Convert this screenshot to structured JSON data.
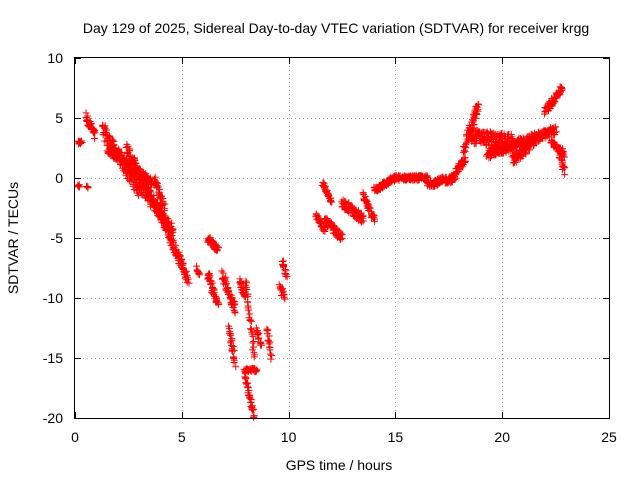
{
  "chart_data": {
    "type": "scatter",
    "title": "Day 129 of 2025, Sidereal Day-to-day VTEC variation (SDTVAR) for receiver krgg",
    "xlabel": "GPS time / hours",
    "ylabel": "SDTVAR / TECUs",
    "xlim": [
      0,
      25
    ],
    "ylim": [
      -20,
      10
    ],
    "xticks": [
      "0",
      "5",
      "10",
      "15",
      "20",
      "25"
    ],
    "yticks": [
      "10",
      "5",
      "0",
      "-5",
      "-10",
      "-15",
      "-20"
    ],
    "grid": true,
    "marker": "+",
    "color": "#ff0000",
    "series": [
      {
        "name": "SDTVAR",
        "segments": [
          {
            "x0": 0.15,
            "x1": 0.3,
            "y0": 2.9,
            "y1": 3.0,
            "spread": 0.3
          },
          {
            "x0": 0.15,
            "x1": 0.2,
            "y0": -0.6,
            "y1": -0.7,
            "spread": 0.2
          },
          {
            "x0": 0.55,
            "x1": 0.6,
            "y0": -0.7,
            "y1": -0.8,
            "spread": 0.2
          },
          {
            "x0": 0.5,
            "x1": 0.95,
            "y0": 5.2,
            "y1": 3.5,
            "spread": 0.8
          },
          {
            "x0": 1.3,
            "x1": 3.0,
            "y0": 4.0,
            "y1": -1.0,
            "spread": 1.2
          },
          {
            "x0": 1.5,
            "x1": 3.6,
            "y0": 2.5,
            "y1": -0.5,
            "spread": 0.8
          },
          {
            "x0": 2.4,
            "x1": 4.0,
            "y0": 2.5,
            "y1": -3.0,
            "spread": 1.0
          },
          {
            "x0": 3.0,
            "x1": 4.6,
            "y0": -0.5,
            "y1": -4.5,
            "spread": 1.0
          },
          {
            "x0": 3.7,
            "x1": 4.2,
            "y0": 0.0,
            "y1": -2.5,
            "spread": 0.6
          },
          {
            "x0": 4.0,
            "x1": 5.3,
            "y0": -3.0,
            "y1": -8.5,
            "spread": 0.8
          },
          {
            "x0": 5.7,
            "x1": 5.8,
            "y0": -7.5,
            "y1": -8.0,
            "spread": 0.4
          },
          {
            "x0": 6.2,
            "x1": 6.7,
            "y0": -5.0,
            "y1": -6.0,
            "spread": 0.6
          },
          {
            "x0": 6.2,
            "x1": 6.7,
            "y0": -8.0,
            "y1": -10.5,
            "spread": 0.8
          },
          {
            "x0": 6.9,
            "x1": 7.5,
            "y0": -8.0,
            "y1": -11.0,
            "spread": 0.8
          },
          {
            "x0": 7.2,
            "x1": 7.5,
            "y0": -12.5,
            "y1": -15.5,
            "spread": 0.6
          },
          {
            "x0": 7.7,
            "x1": 8.0,
            "y0": -8.5,
            "y1": -10.0,
            "spread": 0.5
          },
          {
            "x0": 7.9,
            "x1": 8.4,
            "y0": -16.0,
            "y1": -20.0,
            "spread": 0.4
          },
          {
            "x0": 8.0,
            "x1": 8.4,
            "y0": -8.5,
            "y1": -15.0,
            "spread": 0.6
          },
          {
            "x0": 8.0,
            "x1": 8.5,
            "y0": -16.0,
            "y1": -16.0,
            "spread": 0.3
          },
          {
            "x0": 8.5,
            "x1": 8.7,
            "y0": -12.5,
            "y1": -14.0,
            "spread": 0.4
          },
          {
            "x0": 9.0,
            "x1": 9.2,
            "y0": -12.5,
            "y1": -15.0,
            "spread": 0.4
          },
          {
            "x0": 9.6,
            "x1": 9.8,
            "y0": -9.0,
            "y1": -10.0,
            "spread": 0.6
          },
          {
            "x0": 9.7,
            "x1": 9.9,
            "y0": -7.0,
            "y1": -8.0,
            "spread": 0.6
          },
          {
            "x0": 11.3,
            "x1": 11.7,
            "y0": -3.0,
            "y1": -4.5,
            "spread": 0.6
          },
          {
            "x0": 11.7,
            "x1": 12.5,
            "y0": -3.5,
            "y1": -5.0,
            "spread": 0.6
          },
          {
            "x0": 11.6,
            "x1": 12.0,
            "y0": -0.5,
            "y1": -2.0,
            "spread": 0.4
          },
          {
            "x0": 12.5,
            "x1": 13.5,
            "y0": -2.0,
            "y1": -3.5,
            "spread": 0.8
          },
          {
            "x0": 13.5,
            "x1": 14.0,
            "y0": -1.5,
            "y1": -3.5,
            "spread": 0.6
          },
          {
            "x0": 14.0,
            "x1": 15.0,
            "y0": -1.0,
            "y1": 0.0,
            "spread": 0.5
          },
          {
            "x0": 15.0,
            "x1": 16.5,
            "y0": 0.0,
            "y1": 0.0,
            "spread": 0.4
          },
          {
            "x0": 16.5,
            "x1": 17.8,
            "y0": -0.5,
            "y1": 0.0,
            "spread": 0.6
          },
          {
            "x0": 17.8,
            "x1": 18.3,
            "y0": 0.5,
            "y1": 1.5,
            "spread": 0.6
          },
          {
            "x0": 18.2,
            "x1": 18.9,
            "y0": 2.5,
            "y1": 6.0,
            "spread": 1.0
          },
          {
            "x0": 18.5,
            "x1": 20.5,
            "y0": 3.5,
            "y1": 3.0,
            "spread": 1.2
          },
          {
            "x0": 19.3,
            "x1": 21.0,
            "y0": 2.0,
            "y1": 3.0,
            "spread": 0.8
          },
          {
            "x0": 20.5,
            "x1": 21.5,
            "y0": 1.5,
            "y1": 3.0,
            "spread": 0.8
          },
          {
            "x0": 21.0,
            "x1": 22.5,
            "y0": 3.0,
            "y1": 4.0,
            "spread": 0.8
          },
          {
            "x0": 22.0,
            "x1": 22.8,
            "y0": 5.5,
            "y1": 7.5,
            "spread": 0.6
          },
          {
            "x0": 22.7,
            "x1": 22.9,
            "y0": 2.0,
            "y1": 0.5,
            "spread": 0.6
          },
          {
            "x0": 22.3,
            "x1": 22.9,
            "y0": 3.0,
            "y1": 2.0,
            "spread": 0.5
          }
        ]
      }
    ]
  }
}
